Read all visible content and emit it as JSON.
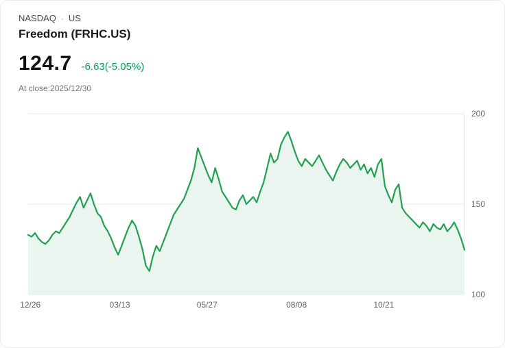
{
  "header": {
    "exchange": "NASDAQ",
    "separator": "·",
    "region": "US",
    "title": "Freedom (FRHC.US)",
    "price": "124.7",
    "change": "-6.63(-5.05%)",
    "at_close": "At close:2025/12/30"
  },
  "colors": {
    "line": "#21a14f",
    "fill": "#e9f5ee",
    "change_text": "#00a050",
    "grid": "#e8e8e8",
    "axis_text": "#666666"
  },
  "chart_data": {
    "type": "area",
    "ylim": [
      100,
      200
    ],
    "yticks": [
      200,
      150,
      100
    ],
    "grid": "horizontal",
    "legend": "none",
    "xticks": [
      {
        "label": "12/26",
        "pos": 0.005
      },
      {
        "label": "03/13",
        "pos": 0.21
      },
      {
        "label": "05/27",
        "pos": 0.41
      },
      {
        "label": "08/08",
        "pos": 0.615
      },
      {
        "label": "10/21",
        "pos": 0.815
      }
    ],
    "values": [
      133,
      132,
      134,
      131,
      129,
      128,
      130,
      133,
      135,
      134,
      137,
      140,
      143,
      147,
      151,
      154,
      148,
      152,
      156,
      150,
      145,
      143,
      138,
      135,
      131,
      126,
      122,
      127,
      132,
      137,
      141,
      138,
      132,
      125,
      116,
      113,
      121,
      127,
      124,
      129,
      134,
      139,
      144,
      147,
      150,
      153,
      158,
      163,
      170,
      181,
      176,
      171,
      166,
      162,
      170,
      164,
      157,
      154,
      151,
      148,
      147,
      152,
      155,
      150,
      152,
      154,
      151,
      157,
      162,
      170,
      178,
      173,
      175,
      183,
      187,
      190,
      185,
      179,
      174,
      171,
      175,
      173,
      171,
      174,
      177,
      173,
      169,
      166,
      163,
      168,
      172,
      175,
      173,
      170,
      172,
      174,
      169,
      172,
      167,
      170,
      165,
      172,
      175,
      160,
      155,
      151,
      158,
      161,
      148,
      145,
      143,
      141,
      139,
      137,
      140,
      138,
      135,
      139,
      137,
      136,
      139,
      135,
      137,
      140,
      136,
      131,
      124.7
    ]
  }
}
